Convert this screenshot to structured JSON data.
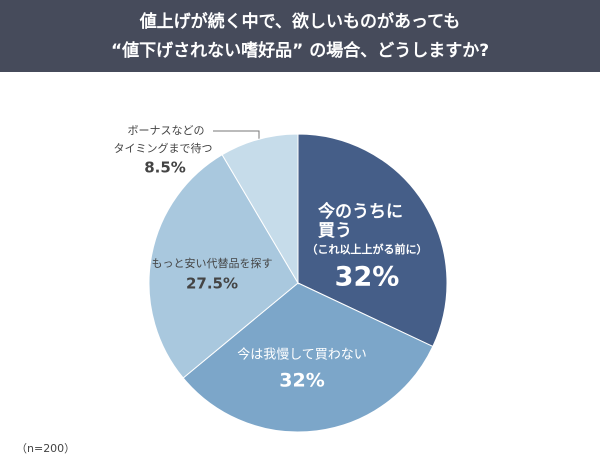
{
  "chart_data": {
    "type": "pie",
    "title": [
      "値上げが続く中で、欲しいものがあっても",
      "“値下げされない嗜好品” の場合、どうしますか?"
    ],
    "categories": [
      [
        "今のうちに",
        "買う",
        "（これ以上上がる前に）"
      ],
      [
        "今は我慢して買わない"
      ],
      [
        "もっと安い代替品を探す"
      ],
      [
        "ボーナスなどの",
        "タイミングまで待つ"
      ]
    ],
    "values": [
      32,
      32,
      27.5,
      8.5
    ],
    "value_labels": [
      "32%",
      "32%",
      "27.5%",
      "8.5%"
    ],
    "colors": [
      "#455e88",
      "#7ca6c9",
      "#a9c8de",
      "#c6dcea"
    ],
    "note": "（n=200）"
  }
}
